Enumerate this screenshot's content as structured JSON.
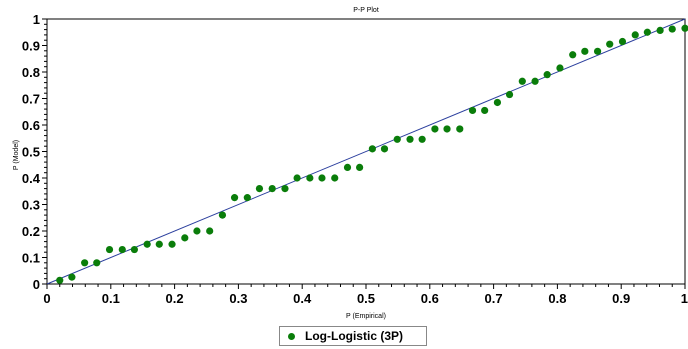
{
  "chart_data": {
    "type": "scatter",
    "title": "P-P Plot",
    "xlabel": "P (Empirical)",
    "ylabel": "P (Model)",
    "xlim": [
      0,
      1
    ],
    "ylim": [
      0,
      1
    ],
    "x_ticks": [
      "0",
      "0.1",
      "0.2",
      "0.3",
      "0.4",
      "0.5",
      "0.6",
      "0.7",
      "0.8",
      "0.9",
      "1"
    ],
    "y_ticks": [
      "0",
      "0.1",
      "0.2",
      "0.3",
      "0.4",
      "0.5",
      "0.6",
      "0.7",
      "0.8",
      "0.9",
      "1"
    ],
    "grid": false,
    "legend_position": "bottom-center",
    "reference_line": {
      "from": [
        0,
        0
      ],
      "to": [
        1,
        1
      ],
      "color": "#2b3f9e"
    },
    "series": [
      {
        "name": "Log-Logistic (3P)",
        "color": "#0a7d0a",
        "points": [
          [
            0.02,
            0.014
          ],
          [
            0.039,
            0.026
          ],
          [
            0.059,
            0.08
          ],
          [
            0.078,
            0.08
          ],
          [
            0.098,
            0.13
          ],
          [
            0.118,
            0.13
          ],
          [
            0.137,
            0.13
          ],
          [
            0.157,
            0.15
          ],
          [
            0.176,
            0.15
          ],
          [
            0.196,
            0.15
          ],
          [
            0.216,
            0.174
          ],
          [
            0.235,
            0.2
          ],
          [
            0.255,
            0.2
          ],
          [
            0.275,
            0.26
          ],
          [
            0.294,
            0.326
          ],
          [
            0.314,
            0.326
          ],
          [
            0.333,
            0.36
          ],
          [
            0.353,
            0.36
          ],
          [
            0.373,
            0.36
          ],
          [
            0.392,
            0.4
          ],
          [
            0.412,
            0.4
          ],
          [
            0.431,
            0.4
          ],
          [
            0.451,
            0.4
          ],
          [
            0.471,
            0.44
          ],
          [
            0.49,
            0.44
          ],
          [
            0.51,
            0.51
          ],
          [
            0.529,
            0.51
          ],
          [
            0.549,
            0.546
          ],
          [
            0.569,
            0.546
          ],
          [
            0.588,
            0.546
          ],
          [
            0.608,
            0.585
          ],
          [
            0.627,
            0.585
          ],
          [
            0.647,
            0.585
          ],
          [
            0.667,
            0.655
          ],
          [
            0.686,
            0.655
          ],
          [
            0.706,
            0.685
          ],
          [
            0.725,
            0.715
          ],
          [
            0.745,
            0.765
          ],
          [
            0.765,
            0.765
          ],
          [
            0.784,
            0.79
          ],
          [
            0.804,
            0.815
          ],
          [
            0.824,
            0.865
          ],
          [
            0.843,
            0.878
          ],
          [
            0.863,
            0.878
          ],
          [
            0.882,
            0.905
          ],
          [
            0.902,
            0.915
          ],
          [
            0.922,
            0.94
          ],
          [
            0.941,
            0.95
          ],
          [
            0.961,
            0.957
          ],
          [
            0.98,
            0.962
          ],
          [
            1.0,
            0.965
          ]
        ]
      }
    ]
  }
}
